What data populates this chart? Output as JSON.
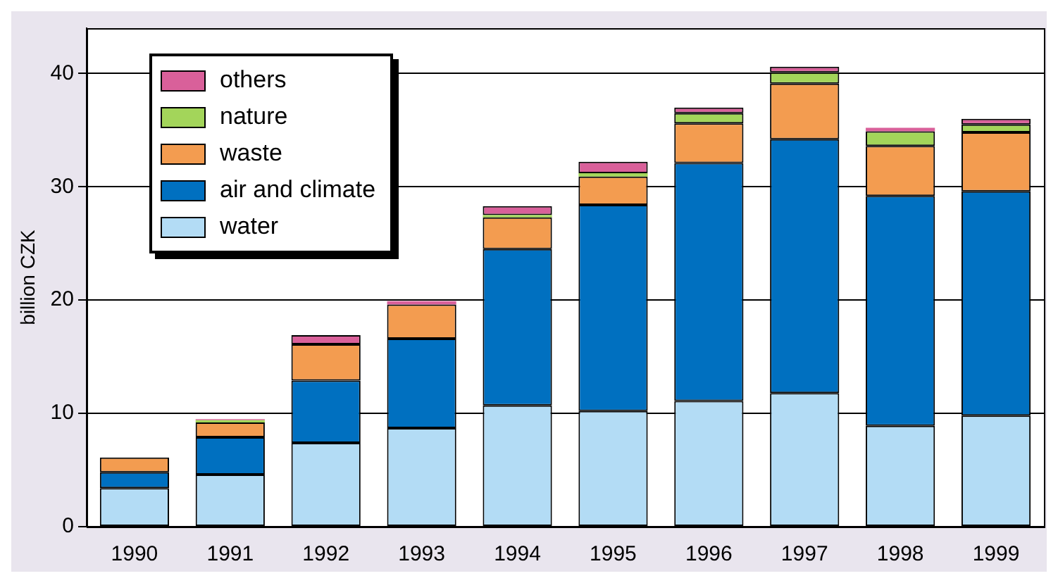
{
  "chart_data": {
    "type": "bar",
    "ylabel": "billion CZK",
    "categories": [
      "1990",
      "1991",
      "1992",
      "1993",
      "1994",
      "1995",
      "1996",
      "1997",
      "1998",
      "1999"
    ],
    "stacked": true,
    "ylim": [
      0,
      44
    ],
    "yticks": [
      0,
      10,
      20,
      30,
      40
    ],
    "grid": "y",
    "legend": "top left",
    "series": [
      {
        "name": "water",
        "color": "#b3dcf5",
        "values": [
          3.4,
          4.6,
          7.4,
          8.7,
          10.7,
          10.2,
          11.1,
          11.8,
          8.9,
          9.8
        ]
      },
      {
        "name": "air and climate",
        "color": "#0070c0",
        "values": [
          1.4,
          3.3,
          5.5,
          7.9,
          13.8,
          18.2,
          21.0,
          22.4,
          20.3,
          19.8
        ]
      },
      {
        "name": "waste",
        "color": "#f39c50",
        "values": [
          1.3,
          1.3,
          3.2,
          3.0,
          2.8,
          2.5,
          3.5,
          4.9,
          4.4,
          5.2
        ]
      },
      {
        "name": "nature",
        "color": "#a3d55a",
        "values": [
          0,
          0.2,
          0,
          0,
          0.2,
          0.3,
          0.9,
          1.0,
          1.3,
          0.7
        ]
      },
      {
        "name": "others",
        "color": "#d9609a",
        "values": [
          0,
          0.1,
          0.8,
          0.3,
          0.8,
          1.0,
          0.5,
          0.5,
          0.3,
          0.5
        ]
      }
    ]
  }
}
